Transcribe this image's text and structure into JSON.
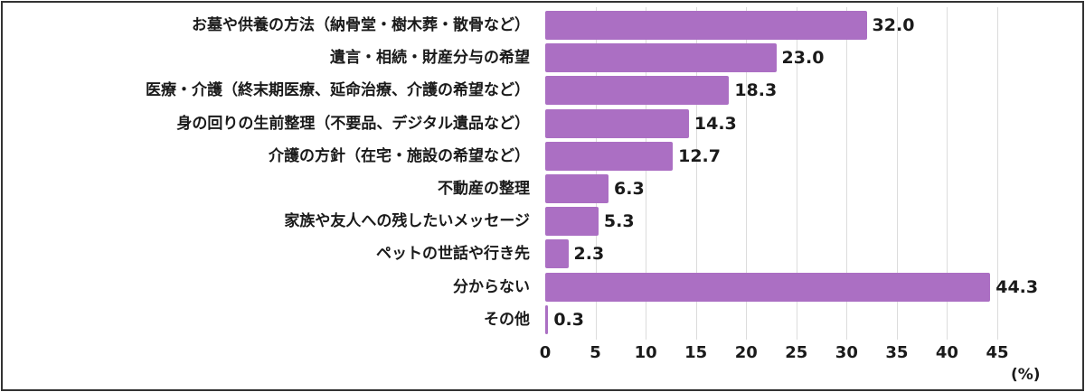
{
  "chart_data": {
    "type": "bar",
    "orientation": "horizontal",
    "title": "",
    "xlabel": "(%)",
    "ylabel": "",
    "xlim": [
      0,
      45
    ],
    "xticks": [
      0,
      5,
      10,
      15,
      20,
      25,
      30,
      35,
      40,
      45
    ],
    "grid": "vertical",
    "bar_color": "#ab6fc3",
    "categories": [
      "お墓や供養の方法（納骨堂・樹木葬・散骨など）",
      "遺言・相続・財産分与の希望",
      "医療・介護（終末期医療、延命治療、介護の希望など）",
      "身の回りの生前整理（不要品、デジタル遺品など）",
      "介護の方針（在宅・施設の希望など）",
      "不動産の整理",
      "家族や友人への残したいメッセージ",
      "ペットの世話や行き先",
      "分からない",
      "その他"
    ],
    "values": [
      32.0,
      23.0,
      18.3,
      14.3,
      12.7,
      6.3,
      5.3,
      2.3,
      44.3,
      0.3
    ],
    "value_labels": [
      "32.0",
      "23.0",
      "18.3",
      "14.3",
      "12.7",
      "6.3",
      "5.3",
      "2.3",
      "44.3",
      "0.3"
    ]
  },
  "axis": {
    "tick_labels": [
      "0",
      "5",
      "10",
      "15",
      "20",
      "25",
      "30",
      "35",
      "40",
      "45"
    ],
    "unit_label": "(%)"
  }
}
